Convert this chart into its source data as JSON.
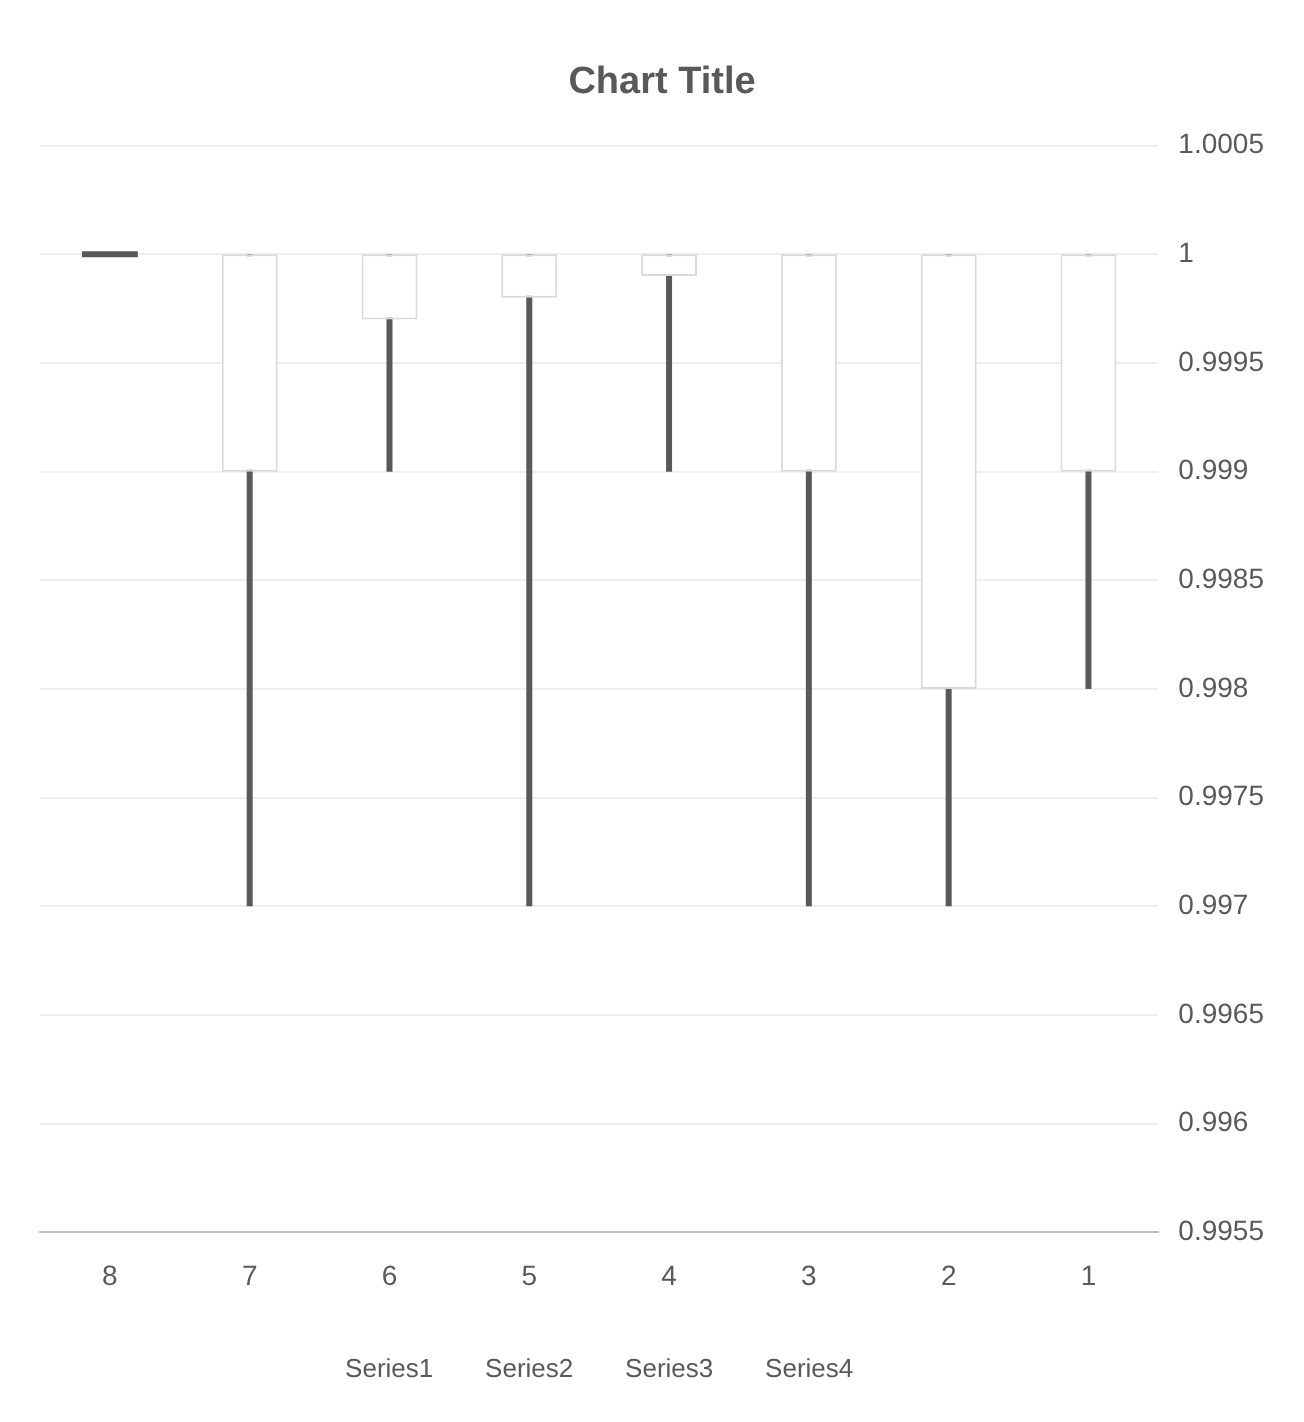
{
  "chart_data": {
    "type": "candlestick",
    "title": "Chart Title",
    "categories": [
      "8",
      "7",
      "6",
      "5",
      "4",
      "3",
      "2",
      "1"
    ],
    "ohlc": [
      [
        1,
        1,
        1,
        1
      ],
      [
        0.999,
        1,
        0.997,
        1
      ],
      [
        0.9997,
        1,
        0.999,
        1
      ],
      [
        0.9998,
        1,
        0.997,
        1
      ],
      [
        0.9999,
        1,
        0.999,
        1
      ],
      [
        0.999,
        1,
        0.997,
        1
      ],
      [
        0.998,
        1,
        0.997,
        1
      ],
      [
        0.999,
        1,
        0.998,
        1
      ]
    ],
    "ylim": [
      0.9955,
      1.0005
    ],
    "yticks": [
      0.9955,
      0.996,
      0.9965,
      0.997,
      0.9975,
      0.998,
      0.9985,
      0.999,
      0.9995,
      1,
      1.0005
    ],
    "grid": "y",
    "annotations": [
      "Series1",
      "Series2",
      "Series3",
      "Series4"
    ]
  }
}
